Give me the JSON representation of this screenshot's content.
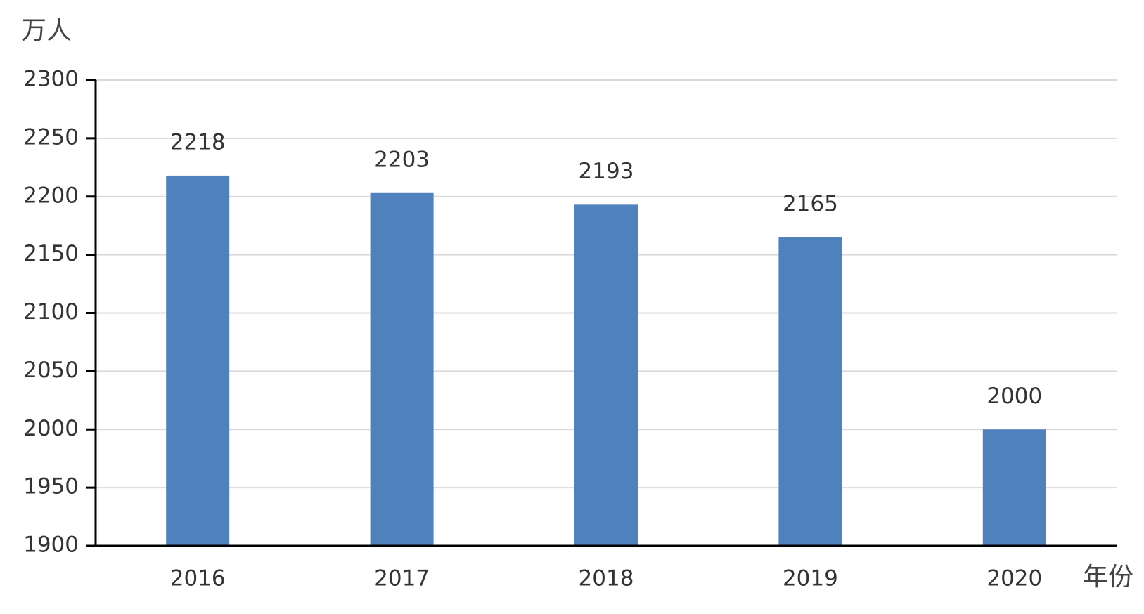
{
  "chart_data": {
    "type": "bar",
    "y_label": "万人",
    "x_label": "年份",
    "categories": [
      "2016",
      "2017",
      "2018",
      "2019",
      "2020"
    ],
    "values": [
      2218,
      2203,
      2193,
      2165,
      2000
    ],
    "color": "#4f81bd",
    "ylim": [
      1900,
      2300
    ],
    "yticks": [
      1900,
      1950,
      2000,
      2050,
      2100,
      2150,
      2200,
      2250,
      2300
    ],
    "grid": true
  }
}
